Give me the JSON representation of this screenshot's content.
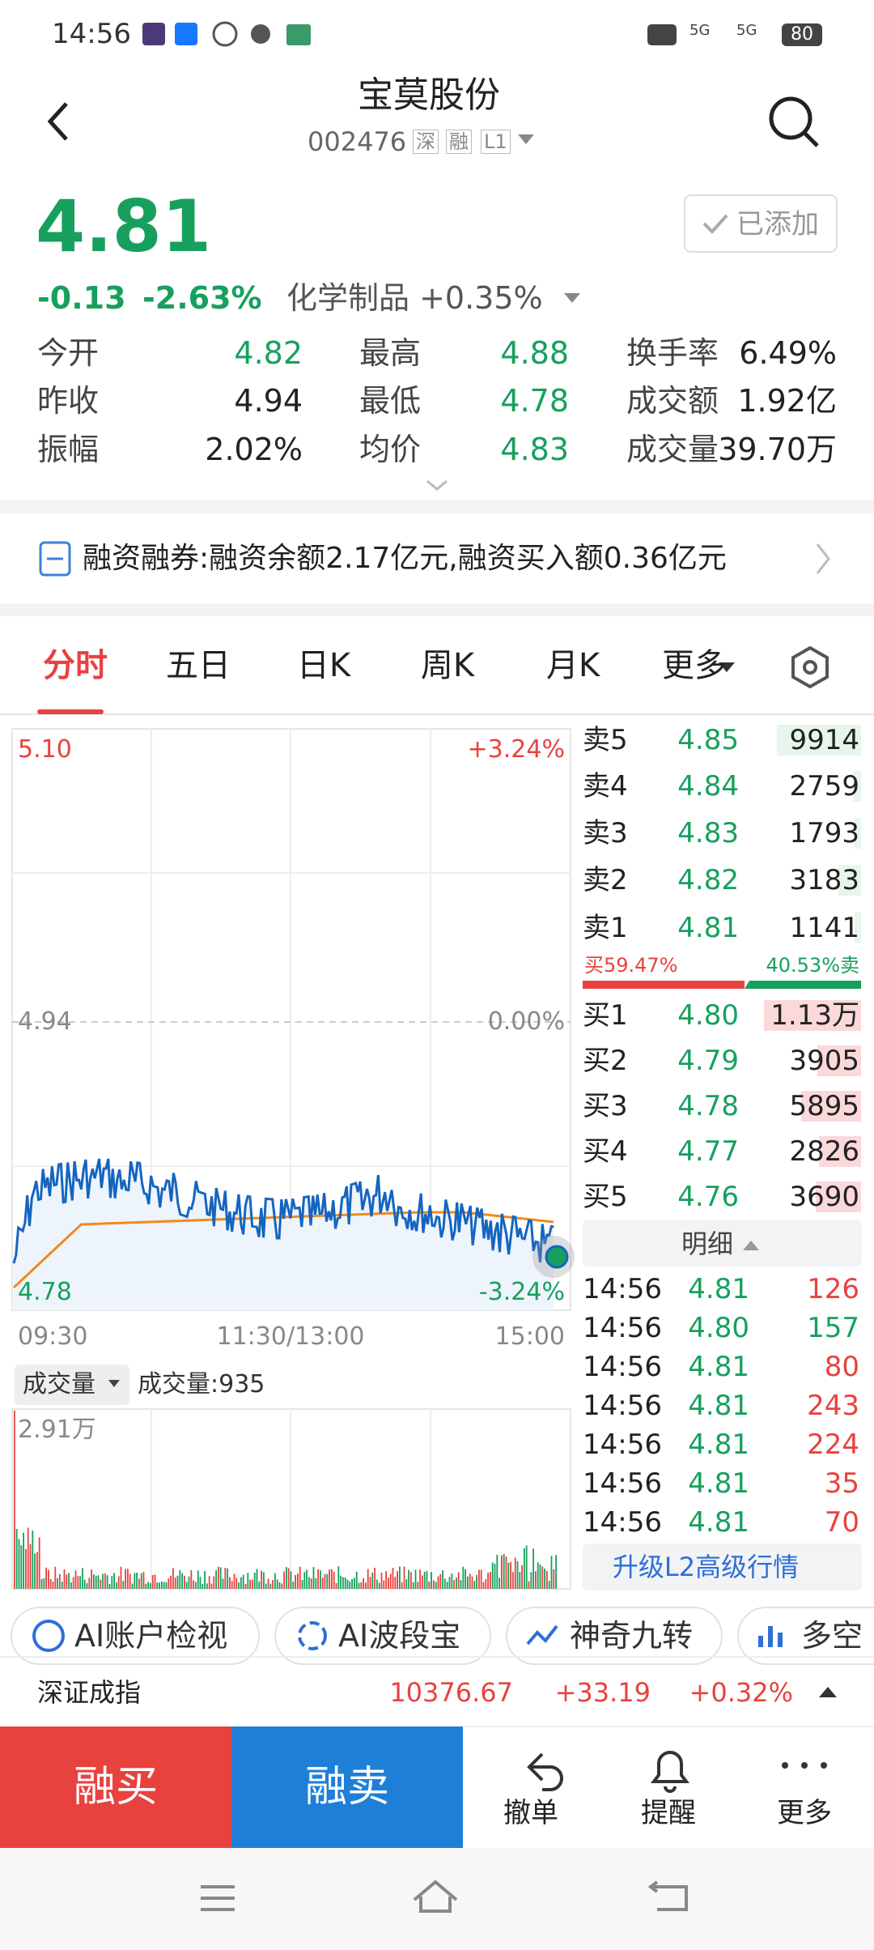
{
  "status_bar": {
    "time": "14:56",
    "battery": "80",
    "network": [
      "5G",
      "5G"
    ]
  },
  "header": {
    "title": "宝莫股份",
    "code": "002476",
    "tags": [
      "深",
      "融",
      "L1"
    ]
  },
  "quote": {
    "price": "4.81",
    "change": "-0.13",
    "change_pct": "-2.63%",
    "sector": "化学制品 +0.35%",
    "watch_button": "已添加",
    "stats": [
      [
        {
          "label": "今开",
          "value": "4.82"
        },
        {
          "label": "最高",
          "value": "4.88"
        },
        {
          "label": "换手率",
          "value": "6.49%"
        }
      ],
      [
        {
          "label": "昨收",
          "value": "4.94"
        },
        {
          "label": "最低",
          "value": "4.78"
        },
        {
          "label": "成交额",
          "value": "1.92亿"
        }
      ],
      [
        {
          "label": "振幅",
          "value": "2.02%"
        },
        {
          "label": "均价",
          "value": "4.83"
        },
        {
          "label": "成交量",
          "value": "39.70万"
        }
      ]
    ]
  },
  "margin_banner": "融资融券:融资余额2.17亿元,融资买入额0.36亿元",
  "tabs": [
    "分时",
    "五日",
    "日K",
    "周K",
    "月K",
    "更多"
  ],
  "intraday": {
    "price_top": "5.10",
    "pct_top": "+3.24%",
    "price_mid": "4.94",
    "pct_mid": "0.00%",
    "price_bottom": "4.78",
    "pct_bottom": "-3.24%",
    "times": [
      "09:30",
      "11:30/13:00",
      "15:00"
    ],
    "volume_selector": "成交量",
    "volume_now": "成交量:935",
    "volume_max": "2.91万"
  },
  "order_book": {
    "asks": [
      {
        "label": "卖5",
        "price": "4.85",
        "volume": "9914"
      },
      {
        "label": "卖4",
        "price": "4.84",
        "volume": "2759"
      },
      {
        "label": "卖3",
        "price": "4.83",
        "volume": "1793"
      },
      {
        "label": "卖2",
        "price": "4.82",
        "volume": "3183"
      },
      {
        "label": "卖1",
        "price": "4.81",
        "volume": "1141"
      }
    ],
    "buy_ratio": "买59.47%",
    "sell_ratio": "40.53%卖",
    "bids": [
      {
        "label": "买1",
        "price": "4.80",
        "volume": "1.13万"
      },
      {
        "label": "买2",
        "price": "4.79",
        "volume": "3905"
      },
      {
        "label": "买3",
        "price": "4.78",
        "volume": "5895"
      },
      {
        "label": "买4",
        "price": "4.77",
        "volume": "2826"
      },
      {
        "label": "买5",
        "price": "4.76",
        "volume": "3690"
      }
    ]
  },
  "trades": {
    "title": "明细",
    "rows": [
      {
        "time": "14:56",
        "price": "4.81",
        "volume": "126",
        "color": "#e8423f"
      },
      {
        "time": "14:56",
        "price": "4.80",
        "volume": "157",
        "color": "#17a05d"
      },
      {
        "time": "14:56",
        "price": "4.81",
        "volume": "80",
        "color": "#e8423f"
      },
      {
        "time": "14:56",
        "price": "4.81",
        "volume": "243",
        "color": "#e8423f"
      },
      {
        "time": "14:56",
        "price": "4.81",
        "volume": "224",
        "color": "#e8423f"
      },
      {
        "time": "14:56",
        "price": "4.81",
        "volume": "35",
        "color": "#e8423f"
      },
      {
        "time": "14:56",
        "price": "4.81",
        "volume": "70",
        "color": "#e8423f"
      }
    ],
    "upgrade": "升级L2高级行情"
  },
  "tools": [
    "AI账户检视",
    "AI波段宝",
    "神奇九转",
    "多空"
  ],
  "index_ticker": {
    "name": "深证成指",
    "value": "10376.67",
    "change": "+33.19",
    "change_pct": "+0.32%"
  },
  "actions": {
    "buy": "融买",
    "sell": "融卖",
    "cancel": "撤单",
    "alert": "提醒",
    "more": "更多"
  }
}
